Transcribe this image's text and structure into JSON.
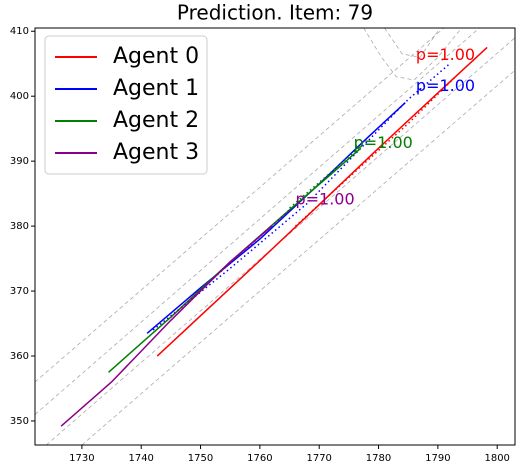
{
  "chart_data": {
    "type": "line",
    "title": "Prediction. Item: 79",
    "xlim": [
      1722.1,
      1803
    ],
    "ylim": [
      346.3,
      410.5
    ],
    "xticks": [
      1730,
      1740,
      1750,
      1760,
      1770,
      1780,
      1790,
      1800
    ],
    "yticks": [
      350,
      360,
      370,
      380,
      390,
      400,
      410
    ],
    "legend": "upper left",
    "series": [
      {
        "name": "Agent 0",
        "color": "#ff0000",
        "x": [
          1742.7,
          1760,
          1770,
          1780,
          1790,
          1798.3
        ],
        "values": [
          360,
          374.7,
          383.3,
          392,
          400.5,
          407.5
        ],
        "pred_x": [
          1766,
          1775,
          1785,
          1793
        ],
        "pred_values": [
          380,
          387.5,
          395.8,
          403
        ]
      },
      {
        "name": "Agent 1",
        "color": "#0000ff",
        "x": [
          1741,
          1750,
          1760,
          1770,
          1778,
          1784.5
        ],
        "values": [
          363.5,
          370.5,
          378,
          386.5,
          393.5,
          399
        ],
        "pred_x": [
          1742,
          1755,
          1768,
          1785,
          1792
        ],
        "pred_values": [
          364,
          373.5,
          383.5,
          399.5,
          405
        ]
      },
      {
        "name": "Agent 2",
        "color": "#008000",
        "x": [
          1734.5,
          1745,
          1755,
          1765,
          1772,
          1777
        ],
        "values": [
          357.5,
          366,
          374.5,
          382.5,
          388,
          392
        ],
        "pred_x": [
          1765,
          1772,
          1777
        ],
        "pred_values": [
          382.8,
          388.3,
          392.3
        ]
      },
      {
        "name": "Agent 3",
        "color": "#8b008b",
        "x": [
          1726.5,
          1735,
          1745,
          1755,
          1762
        ],
        "values": [
          349.2,
          356,
          365.5,
          374.5,
          380
        ],
        "pred_x": [
          1745,
          1755,
          1765
        ],
        "pred_values": [
          366,
          374.3,
          382.5
        ]
      }
    ],
    "annotations": [
      {
        "text": "p=1.00",
        "x": 1786.3,
        "y": 406.3,
        "color": "#ff0000"
      },
      {
        "text": "p=1.00",
        "x": 1786.3,
        "y": 401.5,
        "color": "#0000ff"
      },
      {
        "text": "p=1.00",
        "x": 1775.8,
        "y": 392.7,
        "color": "#008000"
      },
      {
        "text": "p=1.00",
        "x": 1766,
        "y": 384,
        "color": "#8b008b"
      }
    ],
    "map_lines": [
      {
        "x": [
          1722.1,
          1791
        ],
        "values": [
          356,
          410.5
        ]
      },
      {
        "x": [
          1722.1,
          1797
        ],
        "values": [
          351,
          410.5
        ]
      },
      {
        "x": [
          1724,
          1803
        ],
        "values": [
          346.3,
          409
        ]
      },
      {
        "x": [
          1730,
          1803
        ],
        "values": [
          346.3,
          404
        ]
      },
      {
        "x": [
          1777.5,
          1780.5,
          1783,
          1786,
          1790,
          1794
        ],
        "values": [
          410.5,
          406,
          403,
          402.5,
          406,
          410.5
        ]
      },
      {
        "x": [
          1781,
          1784,
          1787,
          1790
        ],
        "values": [
          410.5,
          406.5,
          406,
          410
        ]
      }
    ]
  }
}
